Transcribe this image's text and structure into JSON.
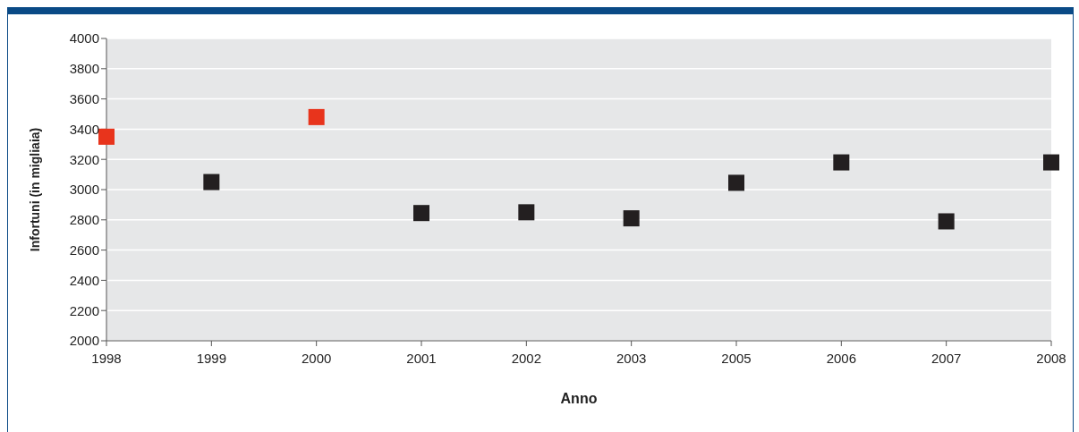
{
  "chart_data": {
    "type": "scatter",
    "xlabel": "Anno",
    "ylabel": "Infortuni (in migliaia)",
    "categories": [
      "1998",
      "1999",
      "2000",
      "2001",
      "2002",
      "2003",
      "2005",
      "2006",
      "2007",
      "2008"
    ],
    "values": [
      3350,
      3050,
      3480,
      2845,
      2850,
      2810,
      3045,
      3180,
      2790,
      3180
    ],
    "colors": [
      "#e8341c",
      "#231f20",
      "#e8341c",
      "#231f20",
      "#231f20",
      "#231f20",
      "#231f20",
      "#231f20",
      "#231f20",
      "#231f20"
    ],
    "marker": "square",
    "ylim": [
      2000,
      4000
    ],
    "yticks": [
      2000,
      2200,
      2400,
      2600,
      2800,
      3000,
      3200,
      3400,
      3600,
      3800,
      4000
    ],
    "grid": "y"
  }
}
